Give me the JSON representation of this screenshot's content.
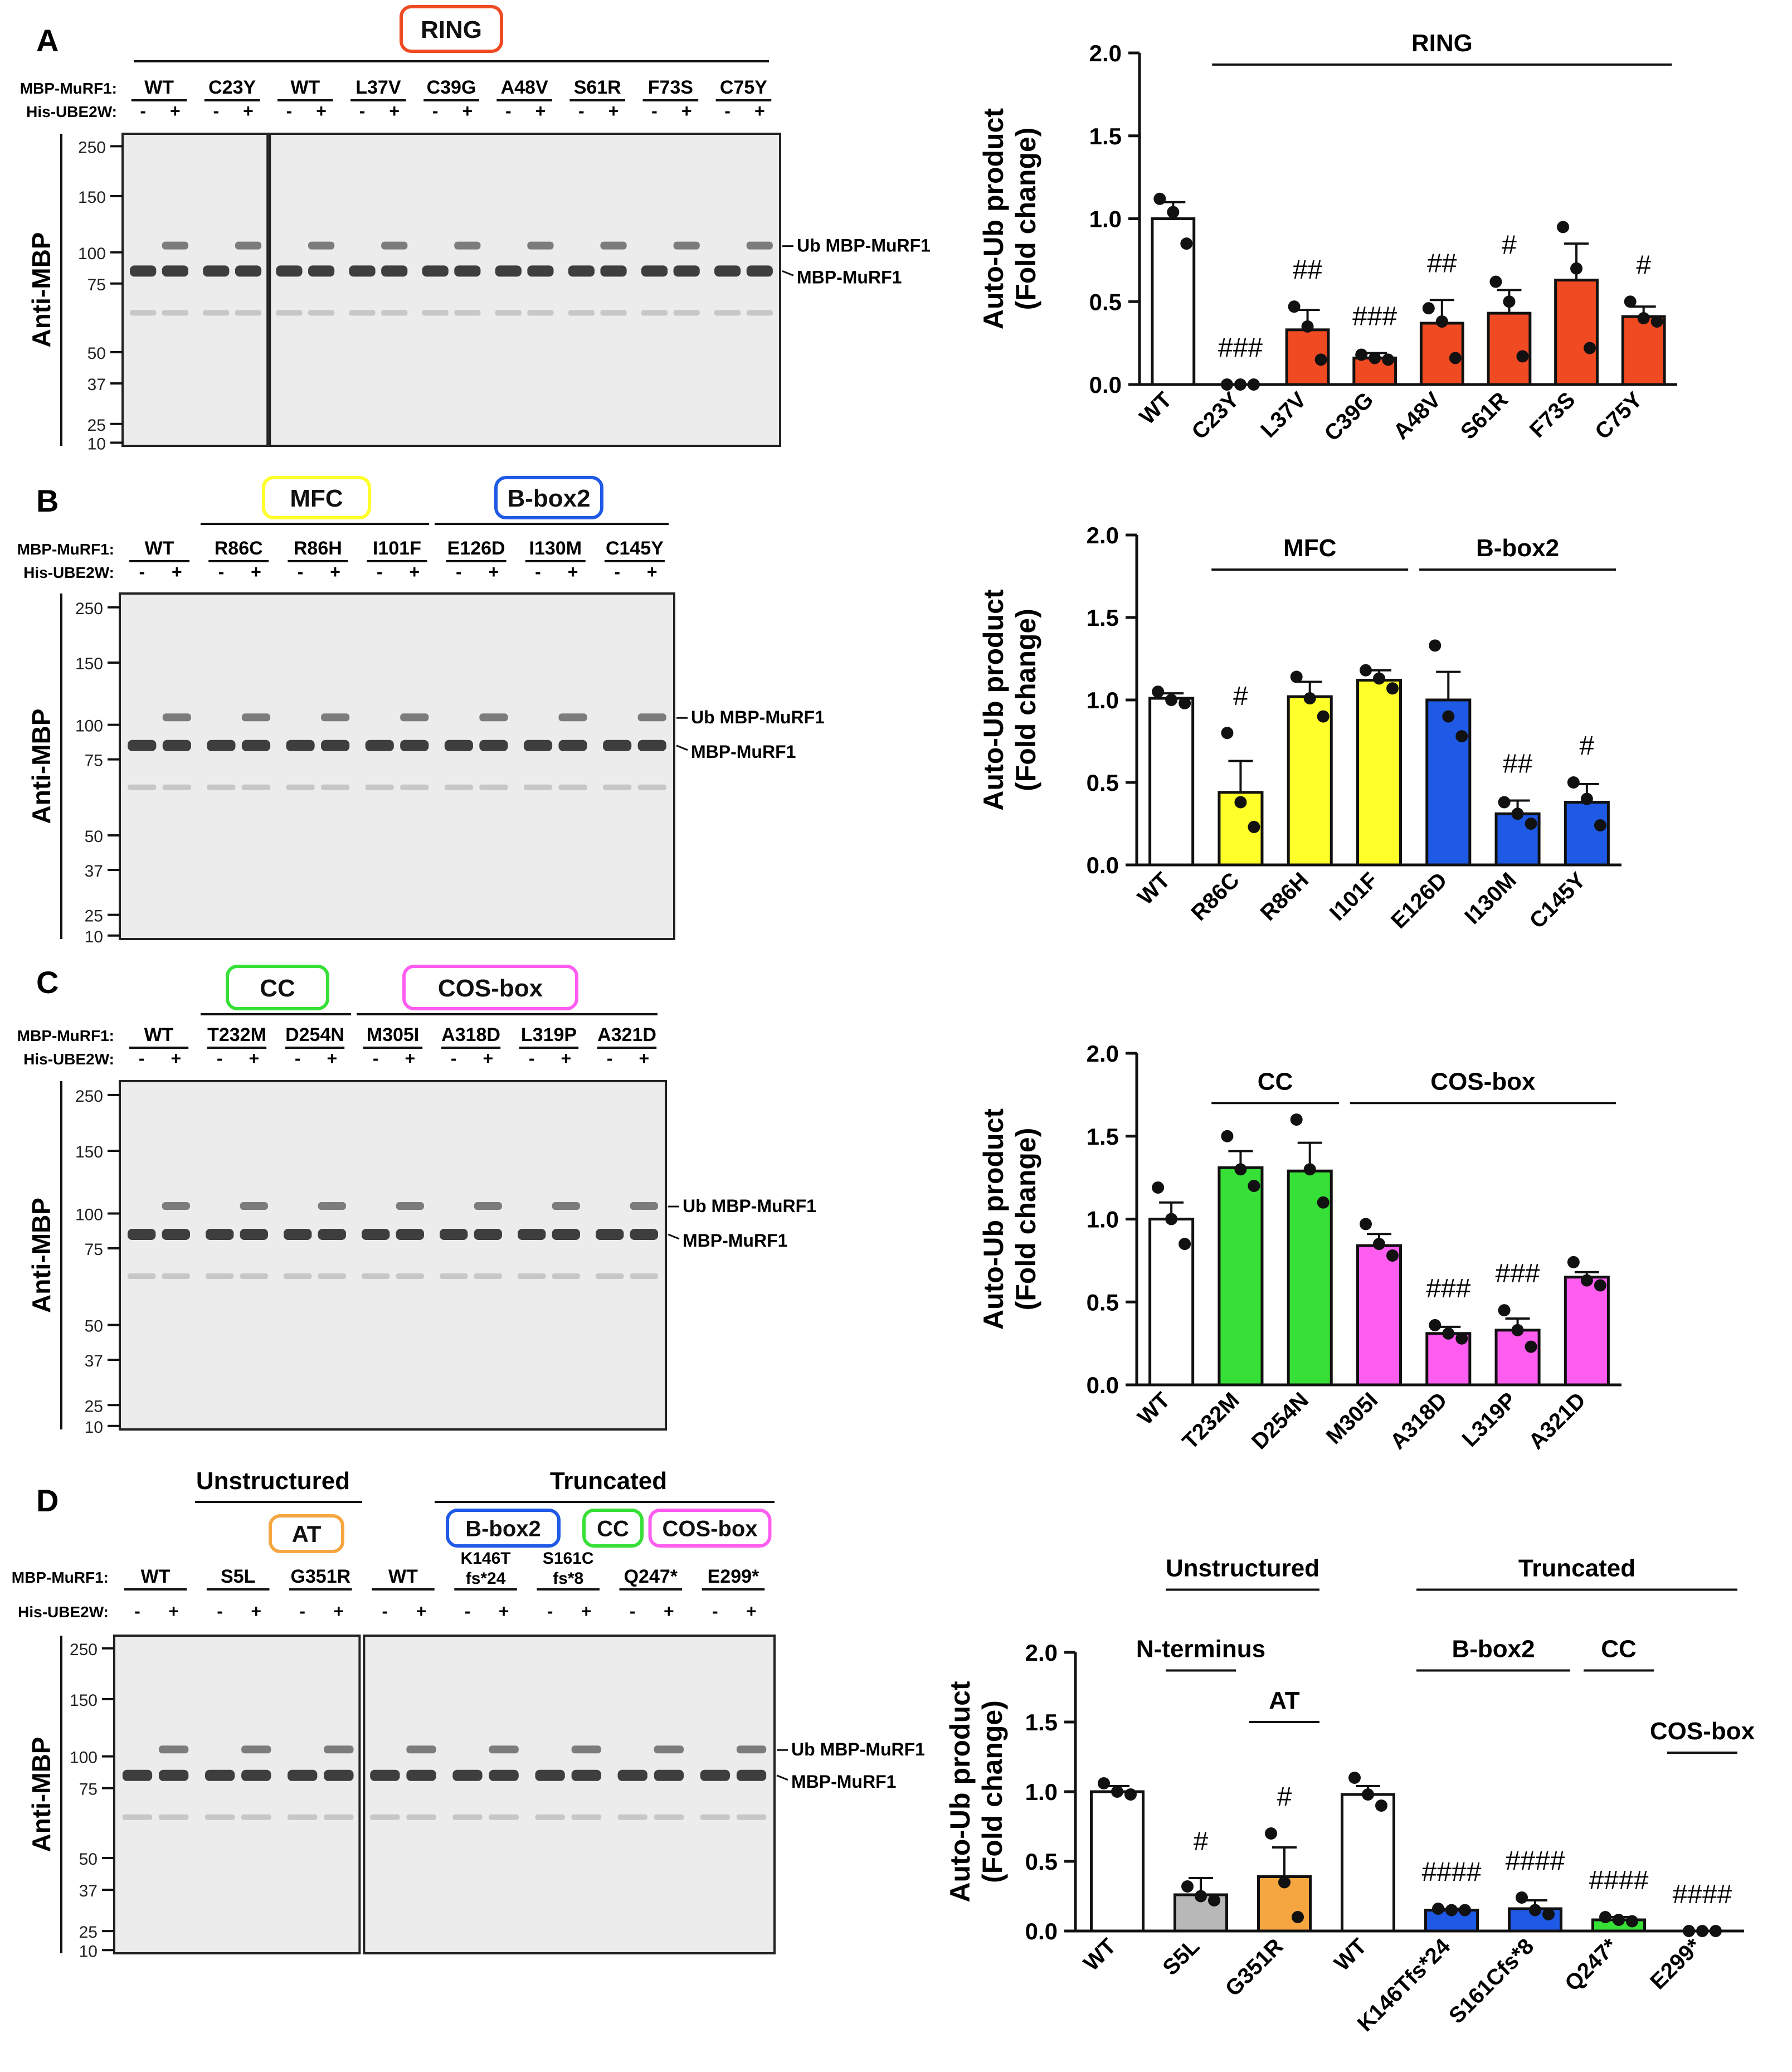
{
  "figure": {
    "colors": {
      "wt": "#ffffff",
      "ring": "#f04a22",
      "mfc": "#ffff2a",
      "bbox2": "#1f5ae6",
      "cc": "#36e036",
      "cos": "#ff5cf0",
      "at": "#f5a640",
      "nterm": "#b8b8b8",
      "blot_bg": "#ececec",
      "band": "#202020"
    },
    "blot_labels": {
      "construct": "MBP-MuRF1:",
      "e2": "His-UBE2W:",
      "minus": "-",
      "plus": "+",
      "antibody": "Anti-MBP",
      "ub_band": "Ub MBP-MuRF1",
      "mbp_band": "MBP-MuRF1"
    },
    "chart_labels": {
      "ylabel_line1": "Auto-Ub product",
      "ylabel_line2": "(Fold change)"
    },
    "panels": [
      {
        "letter": "A",
        "domain_boxes": [
          {
            "label": "RING",
            "color_key": "ring"
          }
        ],
        "lanes": [
          "WT",
          "C23Y",
          "WT",
          "L37V",
          "C39G",
          "A48V",
          "S61R",
          "F73S",
          "C75Y"
        ],
        "mw_markers": [
          "250",
          "150",
          "100",
          "75",
          "50",
          "37",
          "25",
          "10"
        ]
      },
      {
        "letter": "B",
        "domain_boxes": [
          {
            "label": "MFC",
            "color_key": "mfc"
          },
          {
            "label": "B-box2",
            "color_key": "bbox2"
          }
        ],
        "lanes": [
          "WT",
          "R86C",
          "R86H",
          "I101F",
          "E126D",
          "I130M",
          "C145Y"
        ],
        "mw_markers": [
          "250",
          "150",
          "100",
          "75",
          "50",
          "37",
          "25",
          "10"
        ]
      },
      {
        "letter": "C",
        "domain_boxes": [
          {
            "label": "CC",
            "color_key": "cc"
          },
          {
            "label": "COS-box",
            "color_key": "cos"
          }
        ],
        "lanes": [
          "WT",
          "T232M",
          "D254N",
          "M305I",
          "A318D",
          "L319P",
          "A321D"
        ],
        "mw_markers": [
          "250",
          "150",
          "100",
          "75",
          "50",
          "37",
          "25",
          "10"
        ]
      },
      {
        "letter": "D",
        "group_labels": [
          "Unstructured",
          "Truncated"
        ],
        "domain_boxes": [
          {
            "label": "AT",
            "color_key": "at"
          },
          {
            "label": "B-box2",
            "color_key": "bbox2"
          },
          {
            "label": "CC",
            "color_key": "cc"
          },
          {
            "label": "COS-box",
            "color_key": "cos"
          }
        ],
        "lanes": [
          "WT",
          "S5L",
          "G351R",
          "WT",
          "K146T fs*24",
          "S161C fs*8",
          "Q247*",
          "E299*"
        ],
        "mw_markers": [
          "250",
          "150",
          "100",
          "75",
          "50",
          "37",
          "25",
          "10"
        ]
      }
    ]
  },
  "chart_data": [
    {
      "type": "bar",
      "panel": "A",
      "categories": [
        "WT",
        "C23Y",
        "L37V",
        "C39G",
        "A48V",
        "S61R",
        "F73S",
        "C75Y"
      ],
      "values": [
        1.0,
        0.0,
        0.33,
        0.16,
        0.37,
        0.43,
        0.63,
        0.41
      ],
      "errors": [
        0.1,
        0.0,
        0.12,
        0.03,
        0.14,
        0.14,
        0.22,
        0.06
      ],
      "points": [
        [
          1.12,
          1.04,
          0.85
        ],
        [
          0.0,
          0.0,
          0.0
        ],
        [
          0.47,
          0.35,
          0.15
        ],
        [
          0.18,
          0.16,
          0.15
        ],
        [
          0.46,
          0.38,
          0.16
        ],
        [
          0.62,
          0.5,
          0.17
        ],
        [
          0.95,
          0.7,
          0.22
        ],
        [
          0.5,
          0.4,
          0.38
        ]
      ],
      "color_keys": [
        "wt",
        "ring",
        "ring",
        "ring",
        "ring",
        "ring",
        "ring",
        "ring"
      ],
      "significance": [
        "",
        "###",
        "##",
        "###",
        "##",
        "#",
        "",
        "#"
      ],
      "brackets": [
        {
          "label": "RING"
        }
      ],
      "yticks": [
        "0.0",
        "0.5",
        "1.0",
        "1.5",
        "2.0"
      ],
      "ylim": [
        0,
        2.0
      ],
      "ylabel": "Auto-Ub product (Fold change)"
    },
    {
      "type": "bar",
      "panel": "B",
      "categories": [
        "WT",
        "R86C",
        "R86H",
        "I101F",
        "E126D",
        "I130M",
        "C145Y"
      ],
      "values": [
        1.01,
        0.44,
        1.02,
        1.12,
        1.0,
        0.31,
        0.38
      ],
      "errors": [
        0.03,
        0.19,
        0.09,
        0.06,
        0.17,
        0.08,
        0.11
      ],
      "points": [
        [
          1.05,
          1.0,
          0.98
        ],
        [
          0.8,
          0.38,
          0.23
        ],
        [
          1.14,
          1.01,
          0.9
        ],
        [
          1.18,
          1.13,
          1.07
        ],
        [
          1.33,
          0.9,
          0.78
        ],
        [
          0.38,
          0.31,
          0.25
        ],
        [
          0.5,
          0.4,
          0.24
        ]
      ],
      "color_keys": [
        "wt",
        "mfc",
        "mfc",
        "mfc",
        "bbox2",
        "bbox2",
        "bbox2"
      ],
      "significance": [
        "",
        "#",
        "",
        "",
        "",
        "##",
        "#"
      ],
      "brackets": [
        {
          "label": "MFC"
        },
        {
          "label": "B-box2"
        }
      ],
      "yticks": [
        "0.0",
        "0.5",
        "1.0",
        "1.5",
        "2.0"
      ],
      "ylim": [
        0,
        2.0
      ],
      "ylabel": "Auto-Ub product (Fold change)"
    },
    {
      "type": "bar",
      "panel": "C",
      "categories": [
        "WT",
        "T232M",
        "D254N",
        "M305I",
        "A318D",
        "L319P",
        "A321D"
      ],
      "values": [
        1.0,
        1.31,
        1.29,
        0.84,
        0.31,
        0.33,
        0.65
      ],
      "errors": [
        0.1,
        0.1,
        0.17,
        0.07,
        0.04,
        0.07,
        0.03
      ],
      "points": [
        [
          1.19,
          1.0,
          0.85
        ],
        [
          1.5,
          1.3,
          1.2
        ],
        [
          1.6,
          1.3,
          1.1
        ],
        [
          0.97,
          0.85,
          0.78
        ],
        [
          0.36,
          0.31,
          0.28
        ],
        [
          0.45,
          0.33,
          0.23
        ],
        [
          0.74,
          0.63,
          0.6
        ]
      ],
      "color_keys": [
        "wt",
        "cc",
        "cc",
        "cos",
        "cos",
        "cos",
        "cos"
      ],
      "significance": [
        "",
        "",
        "",
        "",
        "###",
        "###",
        ""
      ],
      "brackets": [
        {
          "label": "CC"
        },
        {
          "label": "COS-box"
        }
      ],
      "yticks": [
        "0.0",
        "0.5",
        "1.0",
        "1.5",
        "2.0"
      ],
      "ylim": [
        0,
        2.0
      ],
      "ylabel": "Auto-Ub product (Fold change)"
    },
    {
      "type": "bar",
      "panel": "D",
      "categories": [
        "WT",
        "S5L",
        "G351R",
        "WT",
        "K146Tfs*24",
        "S161Cfs*8",
        "Q247*",
        "E299*"
      ],
      "values": [
        1.0,
        0.26,
        0.39,
        0.98,
        0.15,
        0.16,
        0.08,
        0.0
      ],
      "errors": [
        0.04,
        0.12,
        0.21,
        0.06,
        0.01,
        0.06,
        0.02,
        0.0
      ],
      "points": [
        [
          1.06,
          1.0,
          0.98
        ],
        [
          0.32,
          0.25,
          0.22
        ],
        [
          0.7,
          0.35,
          0.1
        ],
        [
          1.1,
          0.98,
          0.9
        ],
        [
          0.16,
          0.15,
          0.15
        ],
        [
          0.24,
          0.15,
          0.12
        ],
        [
          0.1,
          0.08,
          0.07
        ],
        [
          0.0,
          0.0,
          0.0
        ]
      ],
      "color_keys": [
        "wt",
        "nterm",
        "at",
        "wt",
        "bbox2",
        "bbox2",
        "cc",
        "cos"
      ],
      "significance": [
        "",
        "#",
        "#",
        "",
        "####",
        "####",
        "####",
        "####"
      ],
      "brackets": [
        {
          "label": "Unstructured"
        },
        {
          "label": "N-terminus"
        },
        {
          "label": "AT"
        },
        {
          "label": "Truncated"
        },
        {
          "label": "B-box2"
        },
        {
          "label": "CC"
        },
        {
          "label": "COS-box"
        }
      ],
      "yticks": [
        "0.0",
        "0.5",
        "1.0",
        "1.5",
        "2.0"
      ],
      "ylim": [
        0,
        2.0
      ],
      "ylabel": "Auto-Ub product (Fold change)"
    }
  ]
}
